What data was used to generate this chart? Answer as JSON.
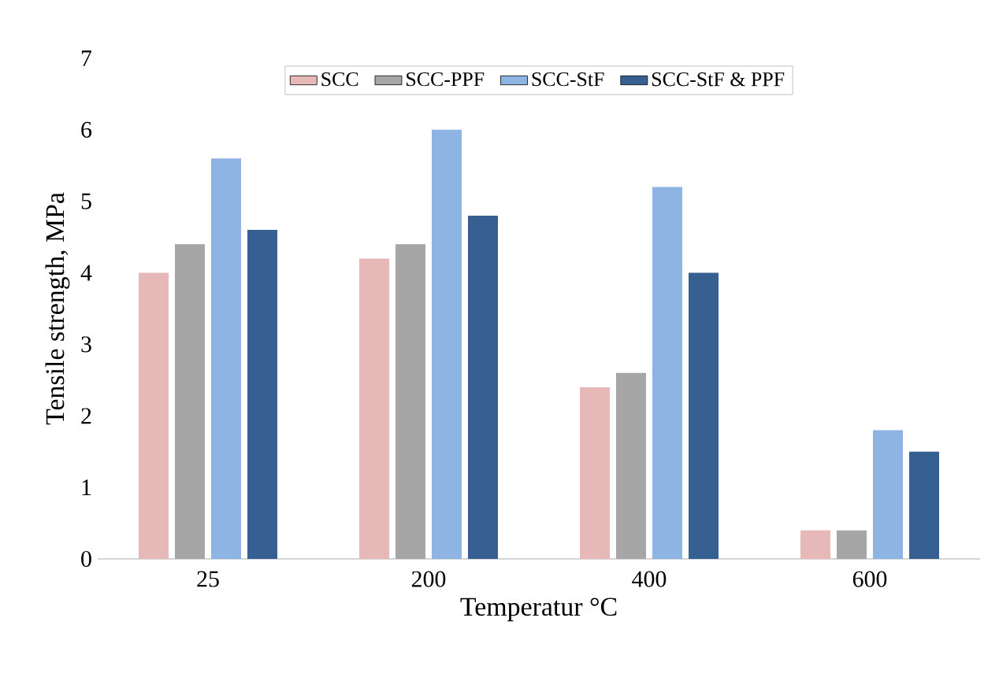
{
  "chart_data": {
    "type": "bar",
    "xlabel": "Temperatur °C",
    "ylabel": "Tensile strength, MPa",
    "categories": [
      "25",
      "200",
      "400",
      "600"
    ],
    "series": [
      {
        "name": "SCC",
        "color": "#e6b9b8",
        "values": [
          4.0,
          4.2,
          2.4,
          0.4
        ]
      },
      {
        "name": "SCC-PPF",
        "color": "#a6a6a6",
        "values": [
          4.4,
          4.4,
          2.6,
          0.4
        ]
      },
      {
        "name": "SCC-StF",
        "color": "#8eb4e3",
        "values": [
          5.6,
          6.0,
          5.2,
          1.8
        ]
      },
      {
        "name": "SCC-StF & PPF",
        "color": "#376092",
        "values": [
          4.6,
          4.8,
          4.0,
          1.5
        ]
      }
    ],
    "ylim": [
      0,
      7
    ],
    "yticks": [
      0,
      1,
      2,
      3,
      4,
      5,
      6,
      7
    ],
    "legend": "top",
    "grid": false
  }
}
